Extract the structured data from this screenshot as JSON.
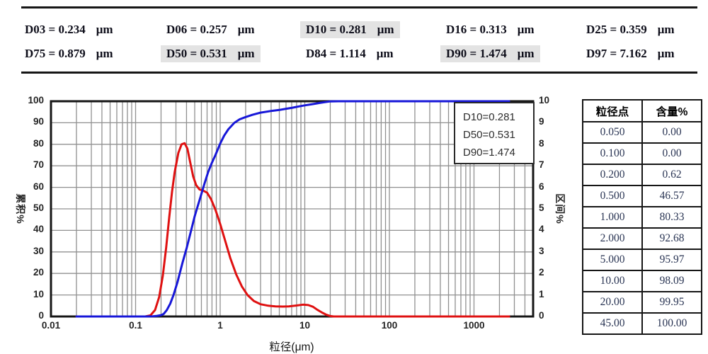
{
  "header": {
    "rows": [
      [
        {
          "label": "D03 = 0.234",
          "unit": "μm",
          "highlight": false
        },
        {
          "label": "D06 = 0.257",
          "unit": "μm",
          "highlight": false
        },
        {
          "label": "D10 = 0.281",
          "unit": "μm",
          "highlight": true
        },
        {
          "label": "D16 = 0.313",
          "unit": "μm",
          "highlight": false
        },
        {
          "label": "D25 = 0.359",
          "unit": "μm",
          "highlight": false
        }
      ],
      [
        {
          "label": "D75 = 0.879",
          "unit": "μm",
          "highlight": false
        },
        {
          "label": "D50 = 0.531",
          "unit": "μm",
          "highlight": true
        },
        {
          "label": "D84 = 1.114",
          "unit": "μm",
          "highlight": false
        },
        {
          "label": "D90 = 1.474",
          "unit": "μm",
          "highlight": true
        },
        {
          "label": "D97 = 7.162",
          "unit": "μm",
          "highlight": false
        }
      ]
    ]
  },
  "chart_data": {
    "type": "line",
    "title": "",
    "xlabel": "粒径(μm)",
    "ylabel_left": "累积%",
    "ylabel_right": "区间%",
    "x_scale": "log",
    "xlim": [
      0.01,
      5000
    ],
    "ylim_left": [
      0,
      100
    ],
    "ylim_right": [
      0,
      10
    ],
    "grid": true,
    "x_ticks": [
      0.01,
      0.1,
      1,
      10,
      100,
      1000
    ],
    "x_tick_labels": [
      "0.01",
      "0.1",
      "1",
      "10",
      "100",
      "1000"
    ],
    "y_ticks_left": [
      0,
      10,
      20,
      30,
      40,
      50,
      60,
      70,
      80,
      90,
      100
    ],
    "y_ticks_right": [
      0,
      1,
      2,
      3,
      4,
      5,
      6,
      7,
      8,
      9,
      10
    ],
    "legend_position": "top-right",
    "legend_lines": [
      "D10=0.281",
      "D50=0.531",
      "D90=1.474"
    ],
    "colors": {
      "cumulative": "#1717d8",
      "frequency": "#df1111",
      "grid": "#909090",
      "frame": "#161616"
    },
    "series": [
      {
        "name": "frequency",
        "axis": "right",
        "color": "#df1111",
        "points": [
          [
            0.02,
            0
          ],
          [
            0.06,
            0
          ],
          [
            0.1,
            0
          ],
          [
            0.13,
            0
          ],
          [
            0.15,
            0.05
          ],
          [
            0.17,
            0.3
          ],
          [
            0.19,
            0.9
          ],
          [
            0.21,
            1.9
          ],
          [
            0.23,
            3.2
          ],
          [
            0.25,
            4.6
          ],
          [
            0.27,
            5.8
          ],
          [
            0.29,
            6.7
          ],
          [
            0.32,
            7.6
          ],
          [
            0.35,
            8.0
          ],
          [
            0.38,
            8.05
          ],
          [
            0.41,
            7.8
          ],
          [
            0.44,
            7.2
          ],
          [
            0.48,
            6.5
          ],
          [
            0.52,
            6.1
          ],
          [
            0.57,
            5.9
          ],
          [
            0.63,
            5.85
          ],
          [
            0.7,
            5.75
          ],
          [
            0.78,
            5.45
          ],
          [
            0.88,
            4.95
          ],
          [
            1.0,
            4.3
          ],
          [
            1.15,
            3.5
          ],
          [
            1.32,
            2.7
          ],
          [
            1.55,
            1.95
          ],
          [
            1.8,
            1.4
          ],
          [
            2.1,
            1.0
          ],
          [
            2.5,
            0.72
          ],
          [
            3.0,
            0.57
          ],
          [
            3.7,
            0.5
          ],
          [
            4.5,
            0.47
          ],
          [
            5.5,
            0.46
          ],
          [
            6.5,
            0.47
          ],
          [
            8.0,
            0.51
          ],
          [
            9.5,
            0.55
          ],
          [
            11,
            0.53
          ],
          [
            12.5,
            0.45
          ],
          [
            14,
            0.32
          ],
          [
            16,
            0.18
          ],
          [
            18,
            0.08
          ],
          [
            20,
            0.02
          ],
          [
            22,
            0
          ],
          [
            30,
            0
          ],
          [
            60,
            0
          ],
          [
            150,
            0
          ],
          [
            400,
            0
          ],
          [
            1000,
            0
          ],
          [
            2600,
            0
          ]
        ]
      },
      {
        "name": "cumulative",
        "axis": "left",
        "color": "#1717d8",
        "points": [
          [
            0.02,
            0
          ],
          [
            0.06,
            0
          ],
          [
            0.1,
            0
          ],
          [
            0.13,
            0
          ],
          [
            0.16,
            0.1
          ],
          [
            0.18,
            0.3
          ],
          [
            0.2,
            0.62
          ],
          [
            0.215,
            1.2
          ],
          [
            0.234,
            3
          ],
          [
            0.257,
            6
          ],
          [
            0.281,
            10
          ],
          [
            0.313,
            16
          ],
          [
            0.359,
            25
          ],
          [
            0.4,
            31.5
          ],
          [
            0.45,
            39.5
          ],
          [
            0.5,
            46.57
          ],
          [
            0.531,
            50
          ],
          [
            0.58,
            55
          ],
          [
            0.65,
            61.5
          ],
          [
            0.72,
            67
          ],
          [
            0.8,
            71.5
          ],
          [
            0.879,
            75
          ],
          [
            1.0,
            80.33
          ],
          [
            1.114,
            84
          ],
          [
            1.25,
            87
          ],
          [
            1.474,
            90
          ],
          [
            1.7,
            91.6
          ],
          [
            2.0,
            92.68
          ],
          [
            2.4,
            93.7
          ],
          [
            3.0,
            94.7
          ],
          [
            4.0,
            95.5
          ],
          [
            5.0,
            95.97
          ],
          [
            6.0,
            96.5
          ],
          [
            7.162,
            97
          ],
          [
            8.5,
            97.6
          ],
          [
            10,
            98.09
          ],
          [
            12.5,
            98.7
          ],
          [
            15,
            99.2
          ],
          [
            17.5,
            99.6
          ],
          [
            20,
            99.95
          ],
          [
            25,
            100
          ],
          [
            32,
            100
          ],
          [
            45,
            100
          ],
          [
            100,
            100
          ],
          [
            400,
            100
          ],
          [
            1000,
            100
          ],
          [
            2600,
            100
          ]
        ]
      }
    ]
  },
  "side_table": {
    "headers": [
      "粒径点",
      "含量%"
    ],
    "rows": [
      [
        "0.050",
        "0.00"
      ],
      [
        "0.100",
        "0.00"
      ],
      [
        "0.200",
        "0.62"
      ],
      [
        "0.500",
        "46.57"
      ],
      [
        "1.000",
        "80.33"
      ],
      [
        "2.000",
        "92.68"
      ],
      [
        "5.000",
        "95.97"
      ],
      [
        "10.00",
        "98.09"
      ],
      [
        "20.00",
        "99.95"
      ],
      [
        "45.00",
        "100.00"
      ]
    ]
  }
}
